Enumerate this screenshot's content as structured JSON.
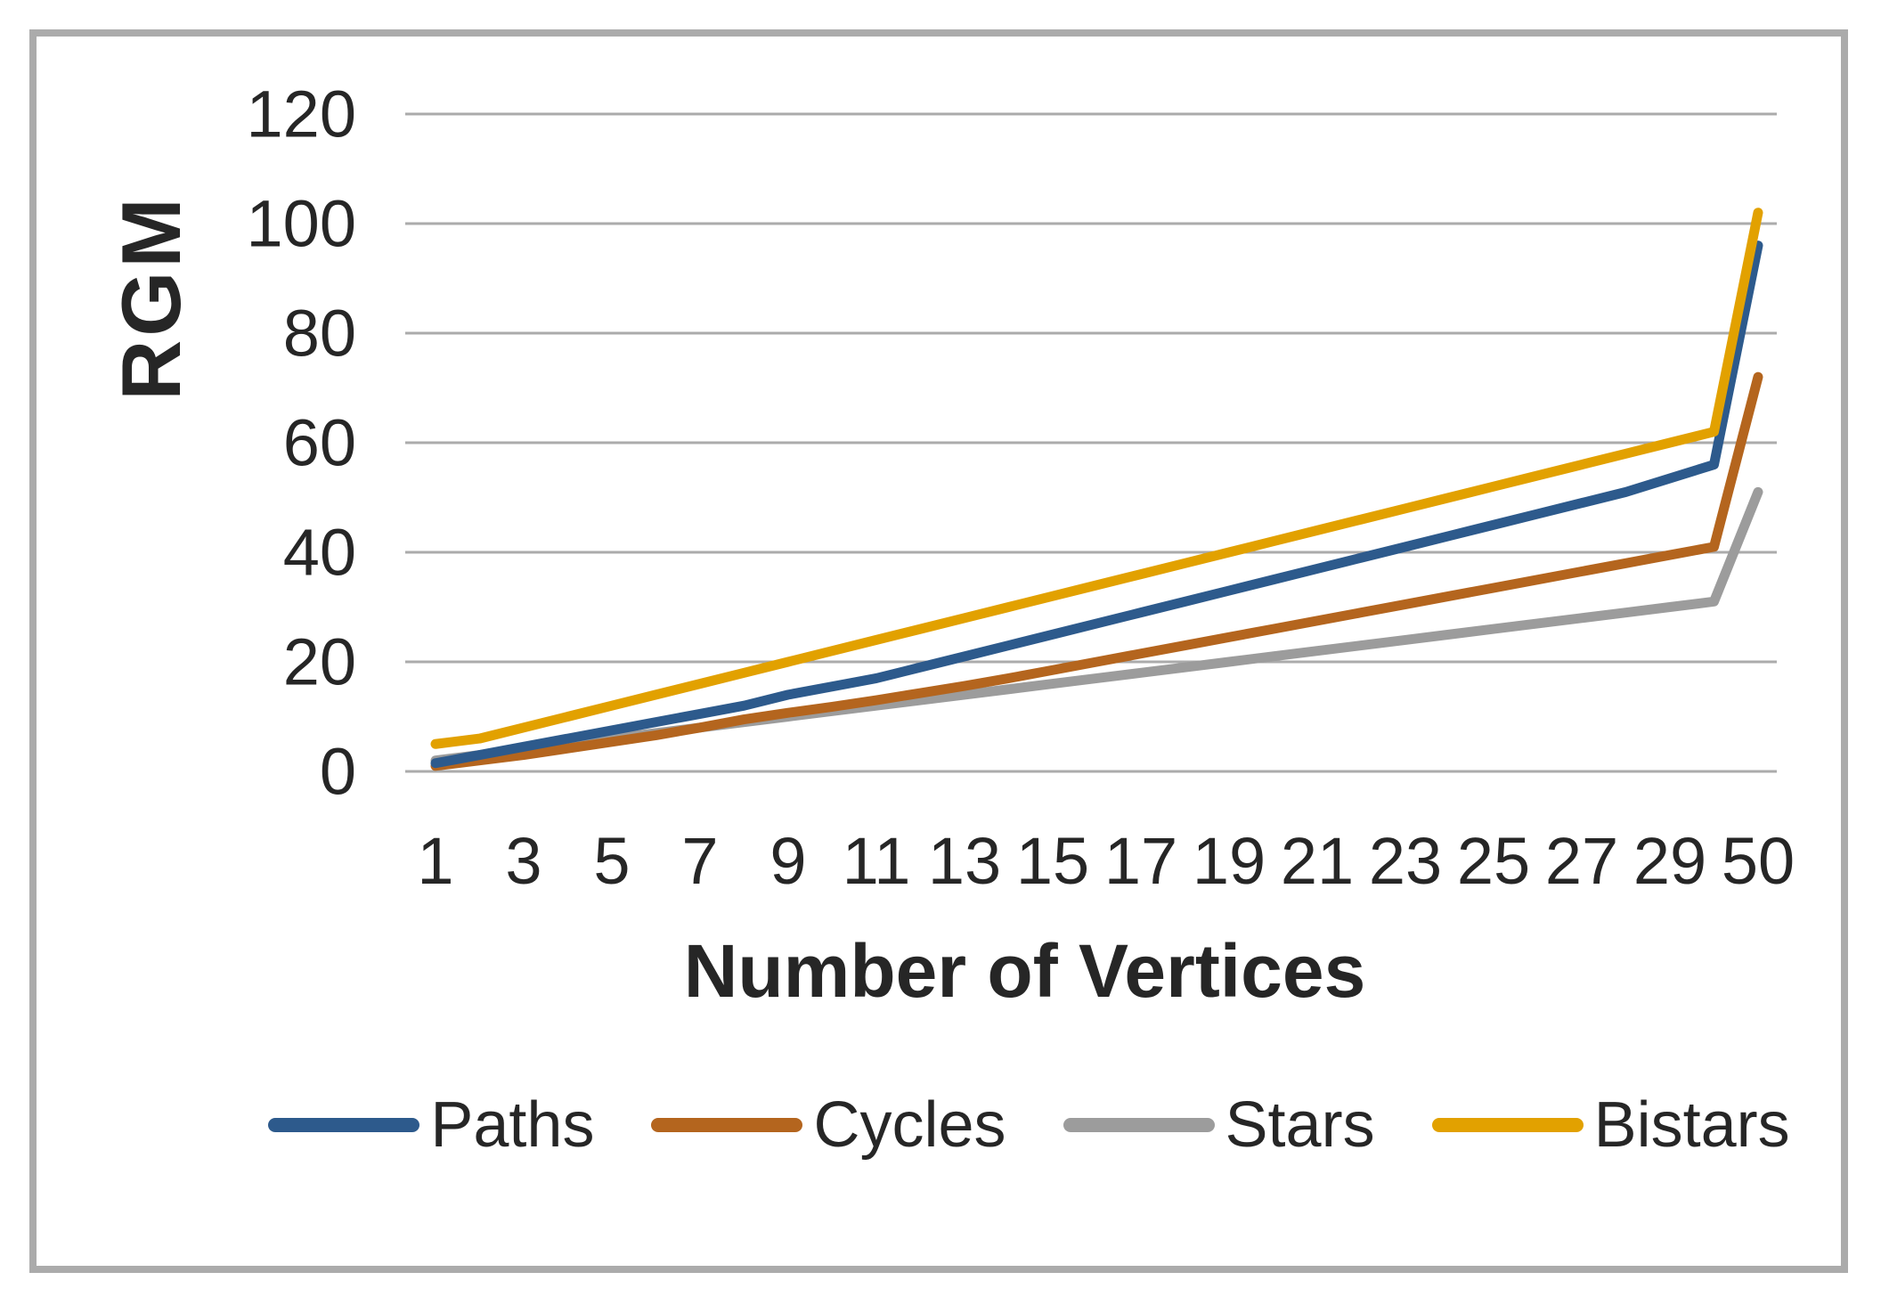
{
  "labels": {
    "y_axis": "RGM",
    "x_axis": "Number of Vertices"
  },
  "colors": {
    "gridline": "#ababab",
    "frame_border": "#ababab",
    "tick_text": "#262626",
    "background": "#ffffff",
    "paths": "#2d5a8c",
    "cycles": "#b4651e",
    "stars": "#9c9c9c",
    "bistars": "#e2a100"
  },
  "chart_data": {
    "type": "line",
    "title": "",
    "xlabel": "Number of Vertices",
    "ylabel": "RGM",
    "ylim": [
      0,
      120
    ],
    "grid": "horizontal",
    "legend_position": "bottom",
    "yticks": [
      0,
      20,
      40,
      60,
      80,
      100,
      120
    ],
    "x": [
      1,
      2,
      3,
      4,
      5,
      6,
      7,
      8,
      9,
      10,
      11,
      12,
      13,
      14,
      15,
      16,
      17,
      18,
      19,
      20,
      21,
      22,
      23,
      24,
      25,
      26,
      27,
      28,
      29,
      30,
      50
    ],
    "xticks_shown": [
      1,
      3,
      5,
      7,
      9,
      11,
      13,
      15,
      17,
      19,
      21,
      23,
      25,
      27,
      29,
      50
    ],
    "series": [
      {
        "name": "Paths",
        "color": "#2d5a8c",
        "values": [
          1.5,
          3,
          4.5,
          6,
          7.5,
          9,
          10.5,
          12,
          14,
          15.5,
          17,
          19,
          21,
          23,
          25,
          27,
          29,
          31,
          33,
          35,
          37,
          39,
          41,
          43,
          45,
          47,
          49,
          51,
          53.5,
          56,
          96
        ]
      },
      {
        "name": "Cycles",
        "color": "#b4651e",
        "values": [
          1,
          2,
          3,
          4.2,
          5.4,
          6.6,
          8,
          9.5,
          10.7,
          11.8,
          13,
          14.3,
          15.6,
          17,
          18.5,
          20,
          21.5,
          23,
          24.5,
          26,
          27.5,
          29,
          30.5,
          32,
          33.5,
          35,
          36.5,
          38,
          39.5,
          41,
          72
        ]
      },
      {
        "name": "Stars",
        "color": "#9c9c9c",
        "values": [
          2,
          3,
          4,
          5,
          6,
          7,
          8,
          9,
          10,
          11,
          12,
          13,
          14,
          15,
          16,
          17,
          18,
          19,
          20,
          21,
          22,
          23,
          24,
          25,
          26,
          27,
          28,
          29,
          30,
          31,
          51
        ]
      },
      {
        "name": "Bistars",
        "color": "#e2a100",
        "values": [
          5,
          6,
          8,
          10,
          12,
          14,
          16,
          18,
          20,
          22,
          24,
          26,
          28,
          30,
          32,
          34,
          36,
          38,
          40,
          42,
          44,
          46,
          48,
          50,
          52,
          54,
          56,
          58,
          60,
          62,
          102
        ]
      }
    ]
  }
}
